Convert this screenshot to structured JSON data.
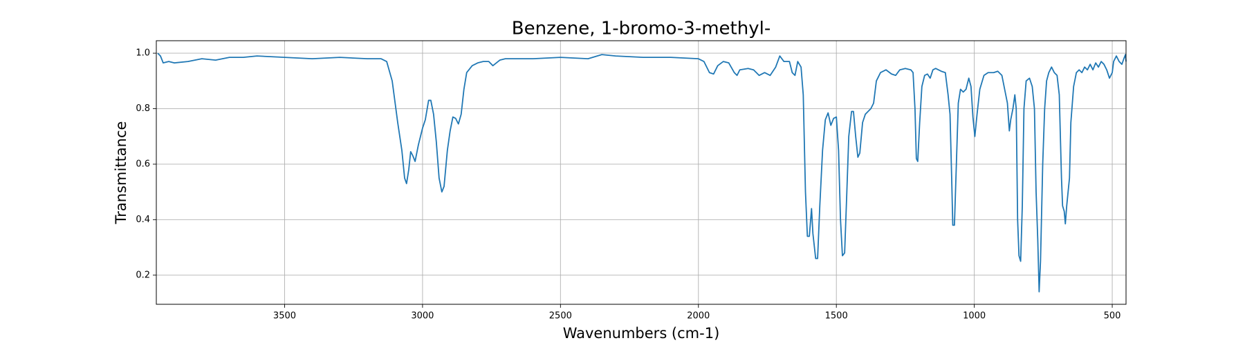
{
  "chart_data": {
    "type": "line",
    "title": "Benzene, 1-bromo-3-methyl-",
    "x_label": "Wavenumbers (cm-1)",
    "y_label": "Transmittance",
    "color": "#1f77b4",
    "grid": true,
    "xlim": [
      3965,
      450
    ],
    "ylim": [
      0.095,
      1.045
    ],
    "xticks": [
      3500,
      3000,
      2500,
      2000,
      1500,
      1000,
      500
    ],
    "yticks": [
      {
        "value": 1,
        "label": "1.0"
      },
      0.8,
      0.6,
      0.4,
      0.2
    ],
    "x": [
      3960,
      3950,
      3940,
      3920,
      3900,
      3850,
      3800,
      3750,
      3700,
      3650,
      3600,
      3500,
      3400,
      3300,
      3200,
      3150,
      3130,
      3110,
      3090,
      3075,
      3065,
      3058,
      3050,
      3043,
      3035,
      3027,
      3015,
      3000,
      2990,
      2978,
      2970,
      2960,
      2950,
      2940,
      2930,
      2922,
      2910,
      2900,
      2890,
      2880,
      2870,
      2860,
      2850,
      2840,
      2820,
      2800,
      2780,
      2760,
      2745,
      2720,
      2700,
      2600,
      2500,
      2400,
      2350,
      2300,
      2200,
      2100,
      2000,
      1980,
      1960,
      1945,
      1930,
      1910,
      1890,
      1870,
      1860,
      1850,
      1820,
      1800,
      1780,
      1760,
      1740,
      1720,
      1705,
      1690,
      1670,
      1660,
      1650,
      1640,
      1628,
      1620,
      1612,
      1605,
      1598,
      1590,
      1585,
      1575,
      1568,
      1560,
      1550,
      1540,
      1530,
      1520,
      1510,
      1500,
      1492,
      1485,
      1478,
      1470,
      1462,
      1455,
      1445,
      1438,
      1430,
      1422,
      1415,
      1405,
      1395,
      1385,
      1375,
      1365,
      1355,
      1340,
      1320,
      1300,
      1285,
      1270,
      1250,
      1230,
      1222,
      1215,
      1210,
      1205,
      1198,
      1190,
      1180,
      1170,
      1160,
      1150,
      1140,
      1120,
      1105,
      1095,
      1088,
      1082,
      1078,
      1072,
      1065,
      1058,
      1050,
      1040,
      1030,
      1020,
      1012,
      1005,
      998,
      990,
      980,
      965,
      950,
      930,
      915,
      900,
      890,
      880,
      873,
      868,
      860,
      853,
      848,
      843,
      838,
      832,
      826,
      820,
      812,
      800,
      790,
      782,
      776,
      770,
      765,
      760,
      752,
      745,
      738,
      730,
      720,
      710,
      700,
      692,
      688,
      684,
      680,
      674,
      670,
      665,
      655,
      650,
      640,
      630,
      620,
      610,
      600,
      590,
      580,
      570,
      560,
      550,
      540,
      530,
      520,
      510,
      500,
      495,
      485,
      475,
      465,
      458,
      452,
      450
    ],
    "values": [
      1.0,
      0.99,
      0.965,
      0.97,
      0.965,
      0.97,
      0.98,
      0.975,
      0.985,
      0.985,
      0.99,
      0.985,
      0.98,
      0.985,
      0.98,
      0.98,
      0.97,
      0.9,
      0.75,
      0.65,
      0.55,
      0.53,
      0.58,
      0.645,
      0.63,
      0.61,
      0.67,
      0.73,
      0.76,
      0.83,
      0.83,
      0.78,
      0.68,
      0.55,
      0.5,
      0.52,
      0.65,
      0.72,
      0.77,
      0.765,
      0.745,
      0.78,
      0.87,
      0.93,
      0.955,
      0.965,
      0.97,
      0.97,
      0.955,
      0.975,
      0.98,
      0.98,
      0.985,
      0.98,
      0.995,
      0.99,
      0.985,
      0.985,
      0.98,
      0.97,
      0.93,
      0.925,
      0.955,
      0.97,
      0.965,
      0.93,
      0.92,
      0.94,
      0.945,
      0.94,
      0.92,
      0.93,
      0.92,
      0.95,
      0.99,
      0.97,
      0.97,
      0.93,
      0.92,
      0.97,
      0.95,
      0.85,
      0.5,
      0.34,
      0.34,
      0.44,
      0.35,
      0.26,
      0.26,
      0.45,
      0.65,
      0.76,
      0.785,
      0.74,
      0.765,
      0.77,
      0.65,
      0.4,
      0.27,
      0.28,
      0.5,
      0.7,
      0.79,
      0.79,
      0.7,
      0.625,
      0.64,
      0.75,
      0.78,
      0.79,
      0.8,
      0.82,
      0.9,
      0.93,
      0.94,
      0.925,
      0.92,
      0.94,
      0.945,
      0.94,
      0.93,
      0.8,
      0.62,
      0.61,
      0.75,
      0.88,
      0.92,
      0.925,
      0.91,
      0.94,
      0.945,
      0.935,
      0.93,
      0.85,
      0.78,
      0.55,
      0.38,
      0.38,
      0.6,
      0.82,
      0.87,
      0.86,
      0.87,
      0.91,
      0.88,
      0.77,
      0.7,
      0.78,
      0.87,
      0.92,
      0.93,
      0.93,
      0.935,
      0.92,
      0.87,
      0.82,
      0.72,
      0.76,
      0.8,
      0.85,
      0.8,
      0.4,
      0.27,
      0.25,
      0.45,
      0.8,
      0.9,
      0.91,
      0.88,
      0.8,
      0.5,
      0.33,
      0.14,
      0.25,
      0.6,
      0.8,
      0.9,
      0.93,
      0.95,
      0.93,
      0.92,
      0.85,
      0.7,
      0.55,
      0.45,
      0.43,
      0.385,
      0.45,
      0.55,
      0.75,
      0.88,
      0.93,
      0.94,
      0.93,
      0.95,
      0.94,
      0.96,
      0.94,
      0.965,
      0.95,
      0.97,
      0.96,
      0.94,
      0.91,
      0.93,
      0.97,
      0.99,
      0.97,
      0.96,
      0.98,
      0.995,
      0.97
    ]
  }
}
